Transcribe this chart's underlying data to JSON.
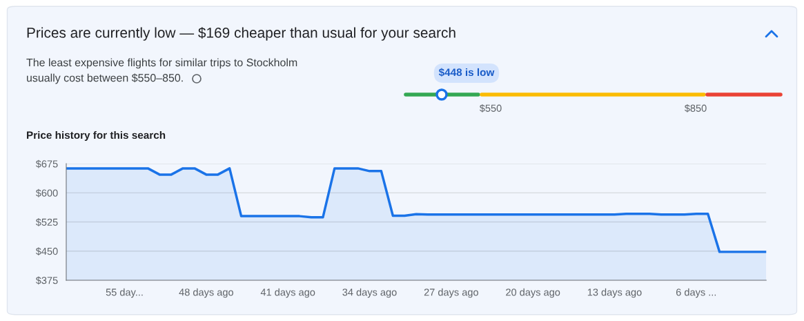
{
  "chart_data": {
    "type": "area",
    "title": "Price history for this search",
    "annotations": [
      "Prices are currently low — $169 cheaper than usual for your search",
      "The least expensive flights for similar trips to Stockholm\nusually cost between $550–850.",
      "$448 is low",
      "$550",
      "$850"
    ],
    "x": [
      60,
      59,
      58,
      57,
      56,
      55,
      54,
      53,
      52,
      51,
      50,
      49,
      48,
      47,
      46,
      45,
      44,
      43,
      42,
      41,
      40,
      39,
      38,
      37,
      36,
      35,
      34,
      33,
      32,
      31,
      30,
      29,
      28,
      27,
      26,
      25,
      24,
      23,
      22,
      21,
      20,
      19,
      18,
      17,
      16,
      15,
      14,
      13,
      12,
      11,
      10,
      9,
      8,
      7,
      6,
      5,
      4,
      3,
      2,
      1,
      0
    ],
    "series": [
      {
        "color": "#1a73e8",
        "values": [
          663,
          663,
          663,
          663,
          663,
          663,
          663,
          663,
          647,
          647,
          663,
          663,
          647,
          647,
          663,
          540,
          540,
          540,
          540,
          540,
          540,
          537,
          537,
          663,
          663,
          663,
          656,
          656,
          541,
          541,
          545,
          544,
          544,
          544,
          544,
          544,
          544,
          544,
          544,
          544,
          544,
          544,
          544,
          544,
          544,
          544,
          544,
          544,
          546,
          546,
          546,
          544,
          544,
          544,
          546,
          546,
          448,
          448,
          448,
          448,
          448
        ]
      }
    ],
    "xlim": [
      60,
      0
    ],
    "xticks": [
      {
        "value": 55,
        "label": "55 day..."
      },
      {
        "value": 48,
        "label": "48 days ago"
      },
      {
        "value": 41,
        "label": "41 days ago"
      },
      {
        "value": 34,
        "label": "34 days ago"
      },
      {
        "value": 27,
        "label": "27 days ago"
      },
      {
        "value": 20,
        "label": "20 days ago"
      },
      {
        "value": 13,
        "label": "13 days ago"
      },
      {
        "value": 6,
        "label": "6 days ..."
      }
    ],
    "ylim": [
      375,
      675
    ],
    "yticks": [
      {
        "value": 375,
        "label": "$375"
      },
      {
        "value": 450,
        "label": "$450"
      },
      {
        "value": 525,
        "label": "$525"
      },
      {
        "value": 600,
        "label": "$600"
      },
      {
        "value": 675,
        "label": "$675"
      }
    ],
    "grid": "y"
  }
}
